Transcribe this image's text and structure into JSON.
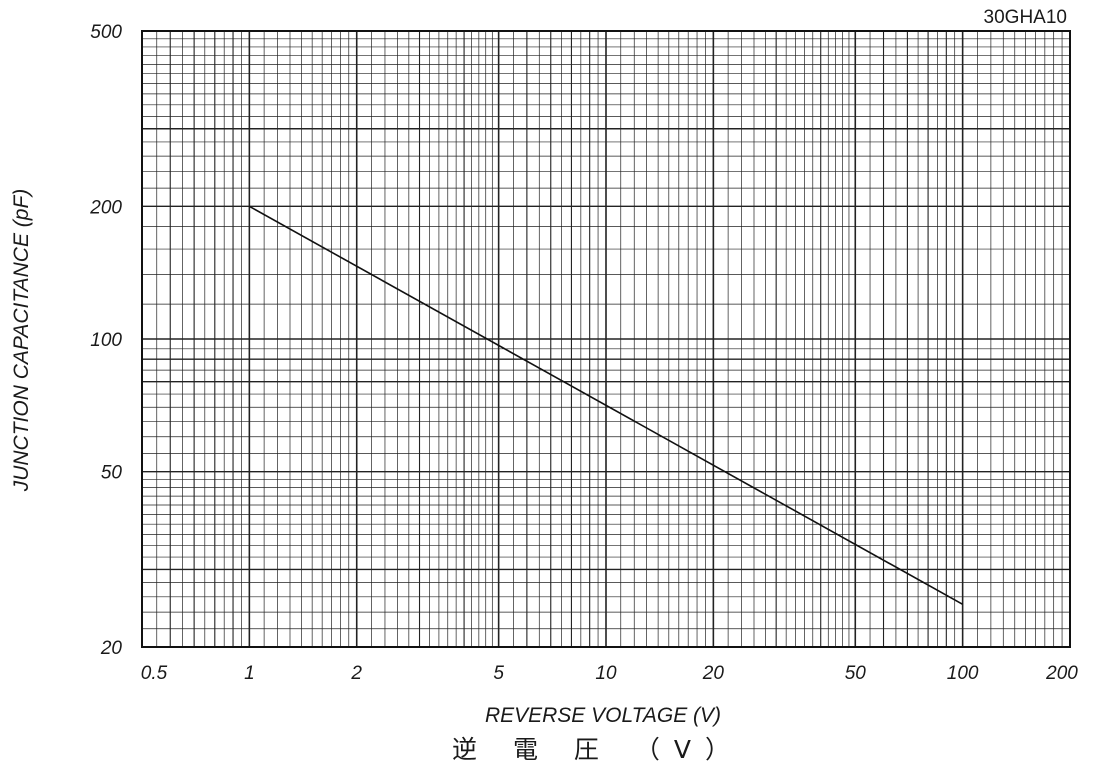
{
  "model_label": "30GHA10",
  "chart_data": {
    "type": "line",
    "title": "",
    "xlabel": "REVERSE VOLTAGE (V)",
    "xlabel_jp": "逆 電 圧 （V）",
    "ylabel": "JUNCTION CAPACITANCE (pF)",
    "x_scale": "log",
    "y_scale": "log",
    "xlim": [
      0.5,
      200
    ],
    "ylim": [
      20,
      500
    ],
    "x_ticks": [
      0.5,
      1,
      2,
      5,
      10,
      20,
      50,
      100,
      200
    ],
    "x_tick_labels": [
      "0.5",
      "1",
      "2",
      "5",
      "10",
      "20",
      "50",
      "100",
      "200"
    ],
    "y_ticks": [
      20,
      50,
      100,
      200,
      500
    ],
    "y_tick_labels": [
      "20",
      "50",
      "100",
      "200",
      "500"
    ],
    "grid": true,
    "legend": "none",
    "series": [
      {
        "x": [
          1,
          100
        ],
        "y": [
          200,
          25
        ]
      }
    ],
    "line_color": "#111111",
    "grid_color": "#222222"
  }
}
